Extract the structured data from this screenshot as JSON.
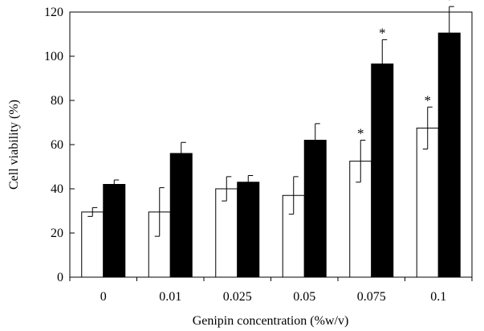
{
  "chart_data": {
    "type": "bar",
    "title": "",
    "xlabel": "Genipin concentration (%w/v)",
    "ylabel": "Cell viability (%)",
    "ylim": [
      0,
      120
    ],
    "yticks": [
      0,
      20,
      40,
      60,
      80,
      100,
      120
    ],
    "categories": [
      "0",
      "0.01",
      "0.025",
      "0.05",
      "0.075",
      "0.1"
    ],
    "grid": false,
    "legend": "none",
    "series": [
      {
        "fill": "#ffffff",
        "values": [
          29.5,
          29.5,
          40,
          37,
          52.5,
          67.5
        ],
        "errors": [
          2,
          11,
          5.5,
          8.5,
          9.5,
          9.5
        ],
        "significance": [
          "",
          "",
          "",
          "",
          "*",
          "*"
        ]
      },
      {
        "fill": "#000000",
        "values": [
          42,
          56,
          43,
          62,
          96.5,
          110.5
        ],
        "errors": [
          2,
          5,
          3,
          7.5,
          11,
          12
        ],
        "significance": [
          "",
          "",
          "",
          "",
          "*",
          "*"
        ]
      }
    ]
  }
}
